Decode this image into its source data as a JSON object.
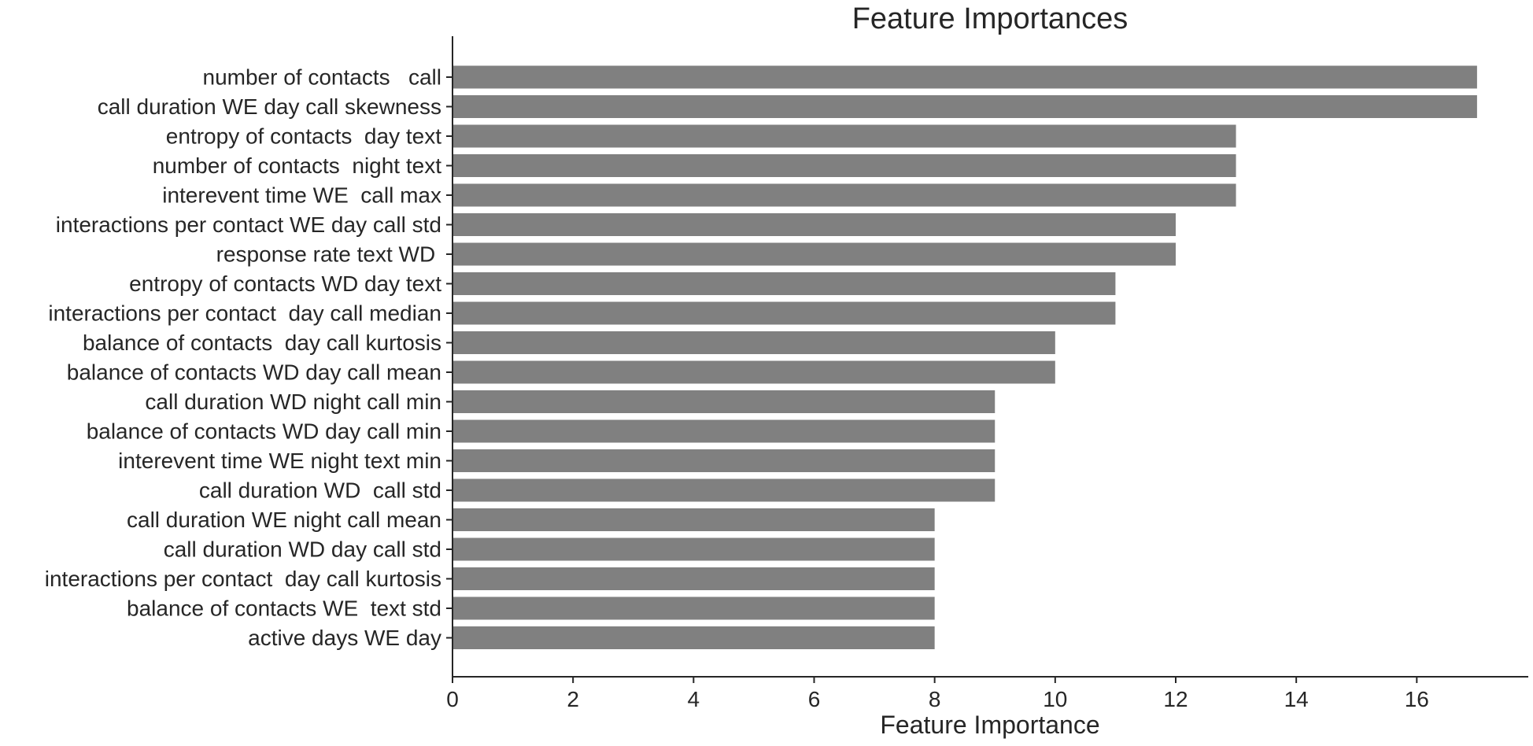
{
  "chart_data": {
    "type": "bar",
    "orientation": "horizontal",
    "title": "Feature Importances",
    "xlabel": "Feature Importance",
    "ylabel": "",
    "xlim": [
      0,
      17.85
    ],
    "xticks": [
      0,
      2,
      4,
      6,
      8,
      10,
      12,
      14,
      16
    ],
    "xtick_labels": [
      "0",
      "2",
      "4",
      "6",
      "8",
      "10",
      "12",
      "14",
      "16"
    ],
    "grid": false,
    "bar_color": "#808080",
    "categories": [
      "number of contacts   call",
      "call duration WE day call skewness",
      "entropy of contacts  day text",
      "number of contacts  night text",
      "interevent time WE  call max",
      "interactions per contact WE day call std",
      "response rate text WD ",
      "entropy of contacts WD day text",
      "interactions per contact  day call median",
      "balance of contacts  day call kurtosis",
      "balance of contacts WD day call mean",
      "call duration WD night call min",
      "balance of contacts WD day call min",
      "interevent time WE night text min",
      "call duration WD  call std",
      "call duration WE night call mean",
      "call duration WD day call std",
      "interactions per contact  day call kurtosis",
      "balance of contacts WE  text std",
      "active days WE day"
    ],
    "values": [
      17,
      17,
      13,
      13,
      13,
      12,
      12,
      11,
      11,
      10,
      10,
      9,
      9,
      9,
      9,
      8,
      8,
      8,
      8,
      8
    ]
  }
}
